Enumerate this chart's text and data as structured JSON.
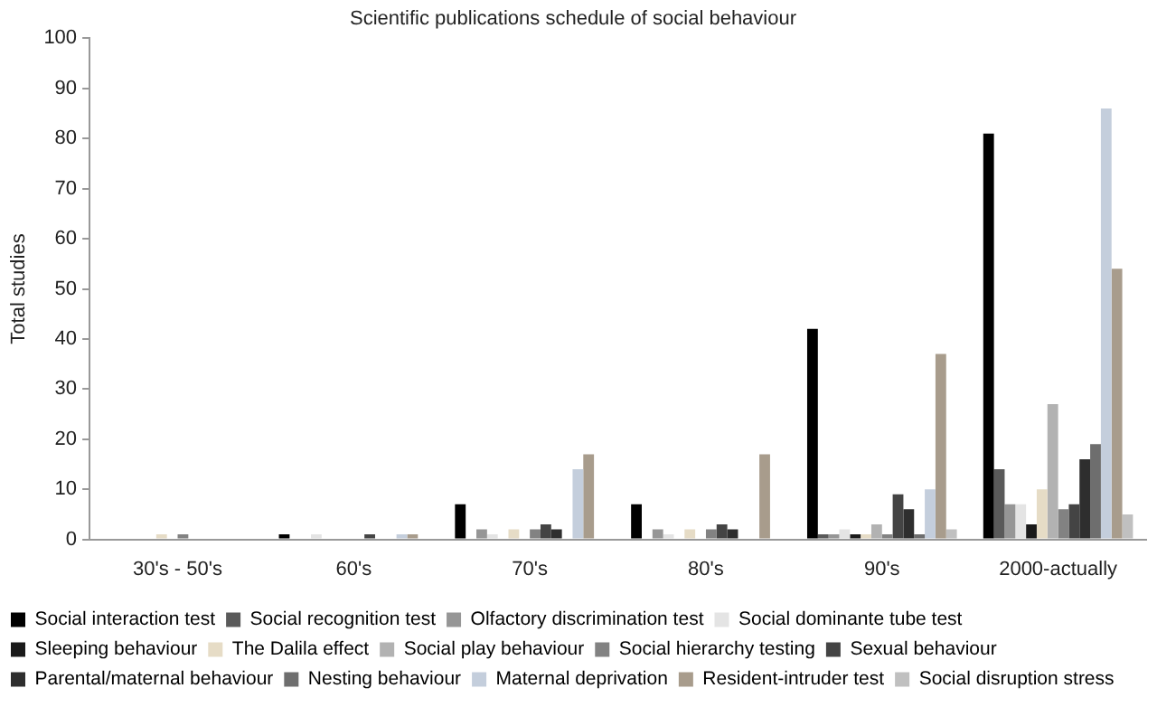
{
  "chart_data": {
    "type": "bar",
    "title": "Scientific publications schedule of social behaviour",
    "ylabel": "Total studies",
    "categories": [
      "30's - 50's",
      "60's",
      "70's",
      "80's",
      "90's",
      "2000-actually"
    ],
    "series": [
      {
        "name": "Social interaction test",
        "color": "#000000",
        "values": [
          0,
          1,
          7,
          7,
          42,
          81
        ]
      },
      {
        "name": "Social recognition test",
        "color": "#5a5a5a",
        "values": [
          0,
          0,
          0,
          0,
          1,
          14
        ]
      },
      {
        "name": "Olfactory discrimination test",
        "color": "#969696",
        "values": [
          0,
          0,
          2,
          2,
          1,
          7
        ]
      },
      {
        "name": "Social dominante tube test",
        "color": "#e4e4e4",
        "values": [
          0,
          1,
          1,
          1,
          2,
          7
        ]
      },
      {
        "name": "Sleeping behaviour",
        "color": "#1a1a1a",
        "values": [
          0,
          0,
          0,
          0,
          1,
          3
        ]
      },
      {
        "name": "The Dalila effect",
        "color": "#e6dcc6",
        "values": [
          1,
          0,
          2,
          2,
          1,
          10
        ]
      },
      {
        "name": "Social play behaviour",
        "color": "#b2b2b2",
        "values": [
          0,
          0,
          0,
          0,
          3,
          27
        ]
      },
      {
        "name": "Social hierarchy testing",
        "color": "#828282",
        "values": [
          1,
          0,
          2,
          2,
          1,
          6
        ]
      },
      {
        "name": "Sexual behaviour",
        "color": "#444444",
        "values": [
          0,
          1,
          3,
          3,
          9,
          7
        ]
      },
      {
        "name": "Parental/maternal behaviour",
        "color": "#2e2e2e",
        "values": [
          0,
          0,
          2,
          2,
          6,
          16
        ]
      },
      {
        "name": "Nesting behaviour",
        "color": "#6e6e6e",
        "values": [
          0,
          0,
          0,
          0,
          1,
          19
        ]
      },
      {
        "name": "Maternal deprivation",
        "color": "#c4cedc",
        "values": [
          0,
          1,
          14,
          0,
          10,
          86
        ]
      },
      {
        "name": "Resident-intruder test",
        "color": "#a89c8c",
        "values": [
          0,
          1,
          17,
          17,
          37,
          54
        ]
      },
      {
        "name": "Social disruption stress",
        "color": "#c0c0c0",
        "values": [
          0,
          0,
          0,
          0,
          2,
          5
        ]
      }
    ],
    "ylim": [
      0,
      100
    ],
    "yticks": [
      0,
      10,
      20,
      30,
      40,
      50,
      60,
      70,
      80,
      90,
      100
    ],
    "grid": false,
    "legend": "bottom"
  }
}
